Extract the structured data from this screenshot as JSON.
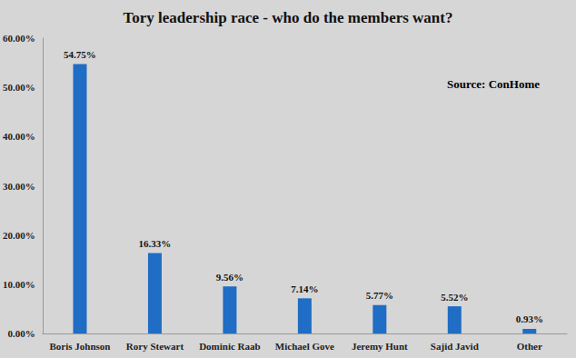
{
  "chart_data": {
    "type": "bar",
    "title": "Tory leadership race - who do the members want?",
    "annotations": [
      "Source: ConHome"
    ],
    "categories": [
      "Boris Johnson",
      "Rory Stewart",
      "Dominic Raab",
      "Michael Gove",
      "Jeremy Hunt",
      "Sajid Javid",
      "Other"
    ],
    "values": [
      54.75,
      16.33,
      9.56,
      7.14,
      5.77,
      5.52,
      0.93
    ],
    "value_labels": [
      "54.75%",
      "16.33%",
      "9.56%",
      "7.14%",
      "5.77%",
      "5.52%",
      "0.93%"
    ],
    "data_labels": true,
    "color": "#1f6dc4",
    "ylim": [
      0,
      60
    ],
    "yticks": [
      {
        "value": 0,
        "label": "0.00%"
      },
      {
        "value": 10,
        "label": "10.00%"
      },
      {
        "value": 20,
        "label": "20.00%"
      },
      {
        "value": 30,
        "label": "30.00%"
      },
      {
        "value": 40,
        "label": "40.00%"
      },
      {
        "value": 50,
        "label": "50.00%"
      },
      {
        "value": 60,
        "label": "60.00%"
      }
    ],
    "grid": false
  }
}
